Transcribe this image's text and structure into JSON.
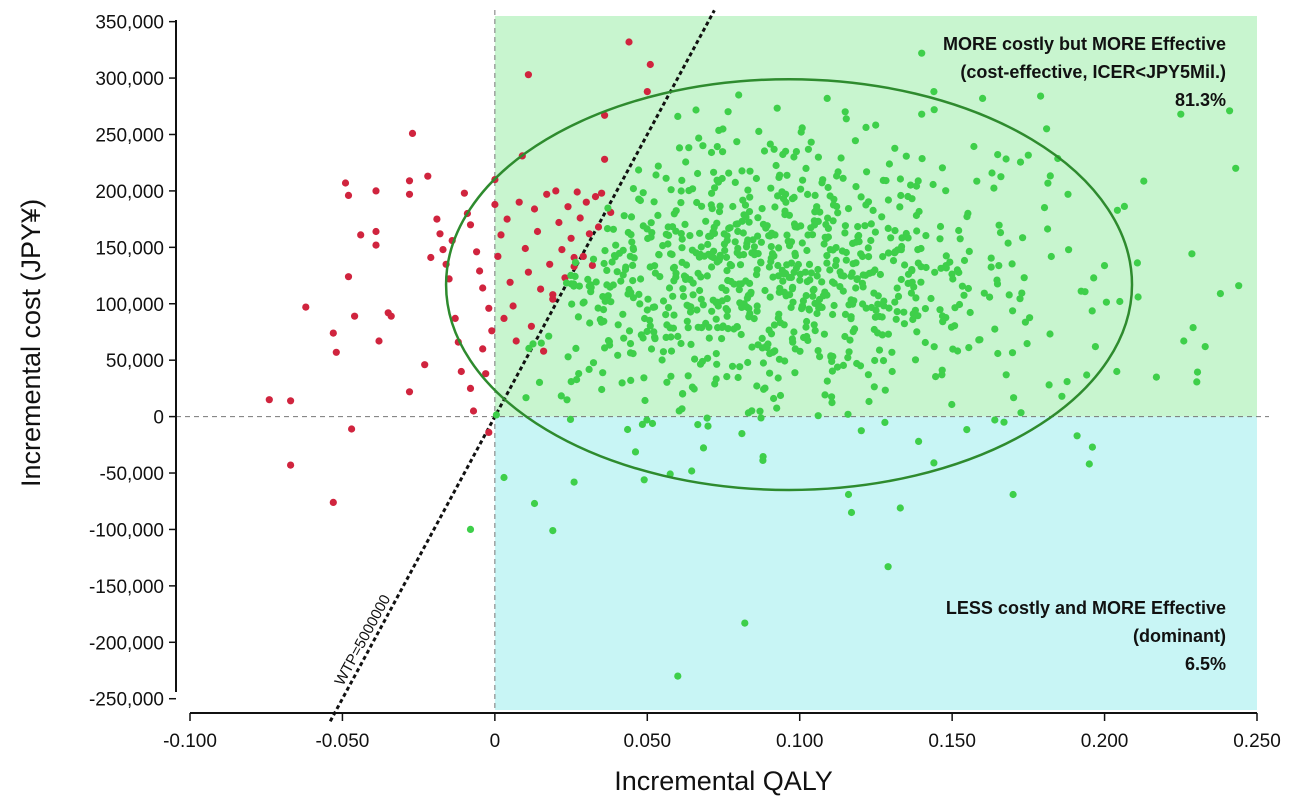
{
  "chart_data": {
    "type": "scatter",
    "title": "",
    "xlabel": "Incremental QALY",
    "ylabel": "Incremental cost (JPY¥)",
    "xlim": [
      -0.1,
      0.25
    ],
    "ylim": [
      -260000,
      355000
    ],
    "x_ticks": [
      -0.1,
      -0.05,
      0,
      0.05,
      0.1,
      0.15,
      0.2,
      0.25
    ],
    "x_tick_labels": [
      "-0.100",
      "-0.050",
      "0",
      "0.050",
      "0.100",
      "0.150",
      "0.200",
      "0.250"
    ],
    "y_ticks": [
      350000,
      300000,
      250000,
      200000,
      150000,
      100000,
      50000,
      0,
      -50000,
      -100000,
      -150000,
      -200000,
      -250000
    ],
    "y_tick_labels": [
      "350,000",
      "300,000",
      "250,000",
      "200,000",
      "150,000",
      "100,000",
      "50,000",
      "0",
      "-50,000",
      "-100,000",
      "-150,000",
      "-200,000",
      "-250,000"
    ],
    "grid": false,
    "wtp": {
      "label": "WTP=5000000",
      "slope_jpy_per_qaly": 5000000
    },
    "ellipse": {
      "center": [
        0.0965,
        117000
      ],
      "x_radius": 0.1125,
      "y_radius": 182000,
      "color": "#2e8b2e"
    },
    "regions": [
      {
        "name": "cost-effective",
        "x": [
          0,
          0.25
        ],
        "y": [
          0,
          355000
        ],
        "color": "#c8f5cf"
      },
      {
        "name": "dominant",
        "x": [
          0,
          0.25
        ],
        "y": [
          -260000,
          0
        ],
        "color": "#c8f5f5"
      }
    ],
    "annotations": [
      {
        "lines": [
          "MORE costly but MORE Effective",
          "(cost-effective, ICER<JPY5Mil.)",
          "81.3%"
        ],
        "anchor": "top-right"
      },
      {
        "lines": [
          "LESS costly and MORE Effective",
          "(dominant)",
          "6.5%"
        ],
        "anchor": "bottom-right"
      }
    ],
    "series": [
      {
        "color": "#d0243e",
        "points": [
          [
            -0.074,
            15000
          ],
          [
            -0.067,
            14000
          ],
          [
            -0.067,
            -43000
          ],
          [
            -0.062,
            97000
          ],
          [
            -0.053,
            74000
          ],
          [
            -0.052,
            57000
          ],
          [
            -0.053,
            -76000
          ],
          [
            -0.049,
            207000
          ],
          [
            -0.048,
            196000
          ],
          [
            -0.048,
            124000
          ],
          [
            -0.047,
            -11000
          ],
          [
            -0.046,
            89000
          ],
          [
            -0.044,
            161000
          ],
          [
            -0.039,
            200000
          ],
          [
            -0.039,
            164000
          ],
          [
            -0.039,
            152000
          ],
          [
            -0.038,
            67000
          ],
          [
            -0.035,
            92000
          ],
          [
            -0.034,
            89000
          ],
          [
            -0.027,
            251000
          ],
          [
            -0.028,
            209000
          ],
          [
            -0.028,
            197000
          ],
          [
            -0.028,
            22000
          ],
          [
            -0.023,
            46000
          ],
          [
            -0.022,
            213000
          ],
          [
            -0.021,
            141000
          ],
          [
            -0.019,
            175000
          ],
          [
            -0.018,
            162000
          ],
          [
            -0.017,
            148000
          ],
          [
            -0.016,
            135000
          ],
          [
            -0.015,
            122000
          ],
          [
            -0.014,
            156000
          ],
          [
            -0.013,
            87000
          ],
          [
            -0.012,
            66000
          ],
          [
            -0.011,
            40000
          ],
          [
            -0.01,
            198000
          ],
          [
            -0.009,
            180000
          ],
          [
            -0.008,
            170000
          ],
          [
            -0.008,
            25000
          ],
          [
            -0.007,
            5000
          ],
          [
            -0.006,
            146000
          ],
          [
            -0.005,
            129000
          ],
          [
            -0.004,
            114000
          ],
          [
            -0.004,
            60000
          ],
          [
            -0.003,
            38000
          ],
          [
            -0.002,
            96000
          ],
          [
            -0.002,
            -14000
          ],
          [
            -0.001,
            76000
          ],
          [
            0.0,
            188000
          ],
          [
            0.0,
            210000
          ],
          [
            0.001,
            142000
          ],
          [
            0.002,
            161000
          ],
          [
            0.003,
            87000
          ],
          [
            0.004,
            175000
          ],
          [
            0.005,
            119000
          ],
          [
            0.006,
            98000
          ],
          [
            0.007,
            67000
          ],
          [
            0.008,
            190000
          ],
          [
            0.009,
            231000
          ],
          [
            0.01,
            149000
          ],
          [
            0.011,
            128000
          ],
          [
            0.012,
            80000
          ],
          [
            0.013,
            184000
          ],
          [
            0.014,
            164000
          ],
          [
            0.015,
            113000
          ],
          [
            0.016,
            58000
          ],
          [
            0.017,
            197000
          ],
          [
            0.018,
            135000
          ],
          [
            0.019,
            104000
          ],
          [
            0.02,
            200000
          ],
          [
            0.021,
            172000
          ],
          [
            0.022,
            148000
          ],
          [
            0.023,
            123000
          ],
          [
            0.024,
            186000
          ],
          [
            0.025,
            158000
          ],
          [
            0.026,
            133000
          ],
          [
            0.027,
            199000
          ],
          [
            0.028,
            176000
          ],
          [
            0.029,
            142000
          ],
          [
            0.03,
            190000
          ],
          [
            0.031,
            162000
          ],
          [
            0.032,
            134000
          ],
          [
            0.033,
            195000
          ],
          [
            0.034,
            168000
          ],
          [
            0.035,
            198000
          ],
          [
            0.036,
            228000
          ],
          [
            0.036,
            267000
          ],
          [
            0.038,
            181000
          ],
          [
            0.011,
            303000
          ],
          [
            0.044,
            332000
          ],
          [
            0.051,
            312000
          ],
          [
            0.05,
            288000
          ],
          [
            0.019,
            108000
          ],
          [
            0.026,
            141000
          ]
        ]
      },
      {
        "color": "#3ecf4a",
        "points": [
          [
            0.06,
            -230000
          ],
          [
            0.082,
            -183000
          ],
          [
            0.129,
            -133000
          ],
          [
            0.019,
            -101000
          ],
          [
            -0.008,
            -100000
          ],
          [
            0.17,
            -69000
          ],
          [
            0.003,
            -54000
          ],
          [
            0.013,
            -77000
          ],
          [
            0.026,
            -58000
          ],
          [
            0.049,
            -56000
          ],
          [
            0.195,
            -42000
          ],
          [
            0.196,
            -27000
          ],
          [
            0.191,
            -17000
          ],
          [
            0.164,
            -3000
          ],
          [
            0.226,
            67000
          ],
          [
            0.243,
            220000
          ],
          [
            0.244,
            116000
          ],
          [
            0.238,
            109000
          ],
          [
            0.233,
            62000
          ],
          [
            0.241,
            271000
          ],
          [
            0.225,
            268000
          ],
          [
            0.211,
            106000
          ],
          [
            0.205,
            102000
          ],
          [
            0.181,
            255000
          ],
          [
            0.188,
            197000
          ],
          [
            0.14,
            322000
          ],
          [
            0.144,
            288000
          ],
          [
            0.14,
            268000
          ],
          [
            0.08,
            285000
          ],
          [
            0.16,
            282000
          ],
          [
            0.179,
            284000
          ],
          [
            0.109,
            282000
          ],
          [
            0.06,
            266000
          ],
          [
            0.197,
            62000
          ],
          [
            0.204,
            40000
          ],
          [
            0.217,
            35000
          ],
          [
            0.186,
            18000
          ],
          [
            0.167,
            -5000
          ],
          [
            0.139,
            -22000
          ],
          [
            0.144,
            -41000
          ],
          [
            0.116,
            -69000
          ],
          [
            0.117,
            -85000
          ],
          [
            0.133,
            -81000
          ]
        ],
        "generated_cluster": {
          "count": 880,
          "x_range": [
            0.0,
            0.245
          ],
          "y_range": [
            -60000,
            280000
          ],
          "center": [
            0.09,
            125000
          ],
          "seed": 7
        }
      }
    ]
  }
}
